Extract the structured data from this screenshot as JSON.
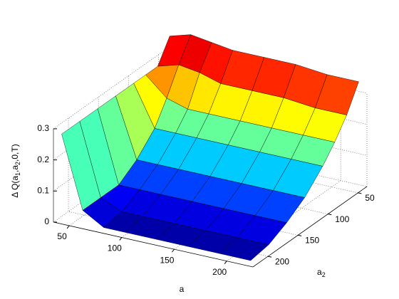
{
  "chart_data": {
    "type": "surface",
    "x": [
      40,
      60,
      80,
      100,
      130,
      160,
      190,
      220
    ],
    "y": [
      40,
      60,
      80,
      100,
      130,
      160,
      190,
      220
    ],
    "z": [
      [
        0.35,
        0.37,
        0.36,
        0.35,
        0.35,
        0.35,
        0.34,
        0.34
      ],
      [
        0.28,
        0.3,
        0.29,
        0.27,
        0.27,
        0.27,
        0.26,
        0.26
      ],
      [
        0.28,
        0.22,
        0.2,
        0.2,
        0.2,
        0.2,
        0.2,
        0.2
      ],
      [
        0.28,
        0.15,
        0.15,
        0.15,
        0.15,
        0.15,
        0.15,
        0.15
      ],
      [
        0.28,
        0.09,
        0.09,
        0.09,
        0.09,
        0.09,
        0.09,
        0.09
      ],
      [
        0.28,
        0.05,
        0.05,
        0.05,
        0.05,
        0.05,
        0.05,
        0.05
      ],
      [
        0.28,
        0.05,
        0.02,
        0.02,
        0.02,
        0.02,
        0.02,
        0.02
      ],
      [
        0.28,
        0.05,
        0.01,
        0.01,
        0.01,
        0.01,
        0.01,
        0.01
      ]
    ],
    "xlim": [
      35,
      225
    ],
    "ylim": [
      35,
      225
    ],
    "zlim": [
      0,
      0.37
    ],
    "xticks": [
      50,
      100,
      150,
      200
    ],
    "yticks": [
      50,
      100,
      150,
      200
    ],
    "zticks": [
      0,
      0.1,
      0.2,
      0.3
    ],
    "xlabel": "a",
    "ylabel": [
      "a",
      "2"
    ],
    "zlabel": [
      "Δ Q(a",
      "1",
      ",a",
      "2",
      ",0,T)"
    ],
    "colormap": "jet",
    "grid": true
  }
}
